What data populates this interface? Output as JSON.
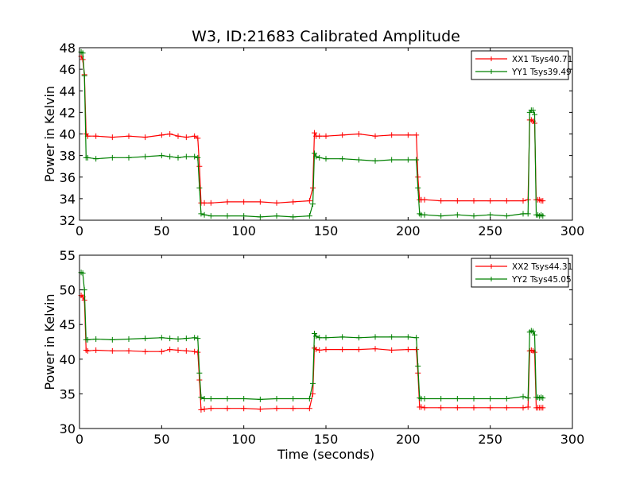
{
  "figure_title": "W3, ID:21683 Calibrated Amplitude",
  "colors": {
    "xx": "#ff0000",
    "yy": "#008000"
  },
  "chart_data": [
    {
      "type": "line",
      "title": "W3, ID:21683 Calibrated Amplitude",
      "xlabel": "",
      "ylabel": "Power in Kelvin",
      "xlim": [
        0,
        300
      ],
      "ylim": [
        32,
        48
      ],
      "xticks": [
        0,
        50,
        100,
        150,
        200,
        250,
        300
      ],
      "yticks": [
        32,
        34,
        36,
        38,
        40,
        42,
        44,
        46,
        48
      ],
      "legend_position": "top-right",
      "grid": false,
      "marker": "+",
      "series": [
        {
          "name": "XX1 Tsys40.71",
          "color": "#ff0000",
          "x": [
            1,
            2,
            3,
            4,
            5,
            10,
            20,
            30,
            40,
            50,
            55,
            60,
            65,
            70,
            72,
            73,
            74,
            76,
            80,
            90,
            100,
            110,
            120,
            130,
            140,
            142,
            143,
            144,
            146,
            150,
            160,
            170,
            180,
            190,
            200,
            205,
            206,
            207,
            208,
            210,
            220,
            230,
            240,
            250,
            260,
            270,
            273,
            274,
            275,
            276,
            277,
            278,
            279,
            280,
            281,
            282
          ],
          "y": [
            47.2,
            46.9,
            45.5,
            40.0,
            39.8,
            39.8,
            39.7,
            39.8,
            39.7,
            39.9,
            40.0,
            39.8,
            39.7,
            39.8,
            39.6,
            37.0,
            33.6,
            33.6,
            33.6,
            33.7,
            33.7,
            33.7,
            33.6,
            33.7,
            33.8,
            35.0,
            40.1,
            39.8,
            39.8,
            39.8,
            39.9,
            40.0,
            39.8,
            39.9,
            39.9,
            39.9,
            36.0,
            33.9,
            33.9,
            33.9,
            33.8,
            33.8,
            33.8,
            33.8,
            33.8,
            33.8,
            33.9,
            41.3,
            41.3,
            41.2,
            41.0,
            33.9,
            33.9,
            33.9,
            33.8,
            33.8
          ]
        },
        {
          "name": "YY1 Tsys39.49",
          "color": "#008000",
          "x": [
            1,
            2,
            3,
            4,
            5,
            10,
            20,
            30,
            40,
            50,
            55,
            60,
            65,
            70,
            72,
            73,
            74,
            76,
            80,
            90,
            100,
            110,
            120,
            130,
            140,
            142,
            143,
            144,
            146,
            150,
            160,
            170,
            180,
            190,
            200,
            205,
            206,
            207,
            208,
            210,
            220,
            230,
            240,
            250,
            260,
            270,
            273,
            274,
            275,
            276,
            277,
            278,
            279,
            280,
            281,
            282
          ],
          "y": [
            47.6,
            47.5,
            45.4,
            37.8,
            37.8,
            37.7,
            37.8,
            37.8,
            37.9,
            38.0,
            37.9,
            37.8,
            37.9,
            37.9,
            37.8,
            35.0,
            32.6,
            32.5,
            32.4,
            32.4,
            32.4,
            32.3,
            32.4,
            32.3,
            32.4,
            33.5,
            38.2,
            37.9,
            37.8,
            37.7,
            37.7,
            37.6,
            37.5,
            37.6,
            37.6,
            37.6,
            35.0,
            32.6,
            32.5,
            32.5,
            32.4,
            32.5,
            32.4,
            32.5,
            32.4,
            32.6,
            32.6,
            42.0,
            42.2,
            42.2,
            41.8,
            32.5,
            32.5,
            32.4,
            32.5,
            32.4
          ]
        }
      ]
    },
    {
      "type": "line",
      "title": "",
      "xlabel": "Time (seconds)",
      "ylabel": "Power in Kelvin",
      "xlim": [
        0,
        300
      ],
      "ylim": [
        30,
        55
      ],
      "xticks": [
        0,
        50,
        100,
        150,
        200,
        250,
        300
      ],
      "yticks": [
        30,
        35,
        40,
        45,
        50,
        55
      ],
      "legend_position": "top-right",
      "grid": false,
      "marker": "+",
      "series": [
        {
          "name": "XX2 Tsys44.31",
          "color": "#ff0000",
          "x": [
            1,
            2,
            3,
            4,
            5,
            10,
            20,
            30,
            40,
            50,
            55,
            60,
            65,
            70,
            72,
            73,
            74,
            76,
            80,
            90,
            100,
            110,
            120,
            130,
            140,
            142,
            143,
            144,
            146,
            150,
            160,
            170,
            180,
            190,
            200,
            205,
            206,
            207,
            208,
            210,
            220,
            230,
            240,
            250,
            260,
            270,
            273,
            274,
            275,
            276,
            277,
            278,
            279,
            280,
            281,
            282
          ],
          "y": [
            49.2,
            49.0,
            48.5,
            41.3,
            41.2,
            41.3,
            41.2,
            41.2,
            41.1,
            41.1,
            41.4,
            41.3,
            41.2,
            41.1,
            41.0,
            37.0,
            32.7,
            32.8,
            32.9,
            32.9,
            32.9,
            32.8,
            32.9,
            32.9,
            32.9,
            35.0,
            41.6,
            41.4,
            41.3,
            41.4,
            41.4,
            41.4,
            41.5,
            41.3,
            41.4,
            41.4,
            38.0,
            33.1,
            33.1,
            33.0,
            33.0,
            33.0,
            33.0,
            33.0,
            33.0,
            33.0,
            33.1,
            41.2,
            41.3,
            41.2,
            41.0,
            33.0,
            33.0,
            33.0,
            33.0,
            33.0
          ]
        },
        {
          "name": "YY2 Tsys45.05",
          "color": "#008000",
          "x": [
            1,
            2,
            3,
            4,
            5,
            10,
            20,
            30,
            40,
            50,
            55,
            60,
            65,
            70,
            72,
            73,
            74,
            76,
            80,
            90,
            100,
            110,
            120,
            130,
            140,
            142,
            143,
            144,
            146,
            150,
            160,
            170,
            180,
            190,
            200,
            205,
            206,
            207,
            208,
            210,
            220,
            230,
            240,
            250,
            260,
            270,
            273,
            274,
            275,
            276,
            277,
            278,
            279,
            280,
            281,
            282
          ],
          "y": [
            52.5,
            52.4,
            50.0,
            42.8,
            42.8,
            42.9,
            42.8,
            42.9,
            43.0,
            43.1,
            43.0,
            42.9,
            43.0,
            43.1,
            43.0,
            38.0,
            34.5,
            34.3,
            34.3,
            34.3,
            34.3,
            34.2,
            34.3,
            34.3,
            34.3,
            36.5,
            43.7,
            43.3,
            43.1,
            43.1,
            43.2,
            43.1,
            43.2,
            43.2,
            43.2,
            43.1,
            39.0,
            34.4,
            34.3,
            34.3,
            34.3,
            34.3,
            34.3,
            34.3,
            34.3,
            34.6,
            34.4,
            43.9,
            44.1,
            44.0,
            43.5,
            34.5,
            34.5,
            34.4,
            34.5,
            34.4
          ]
        }
      ]
    }
  ]
}
